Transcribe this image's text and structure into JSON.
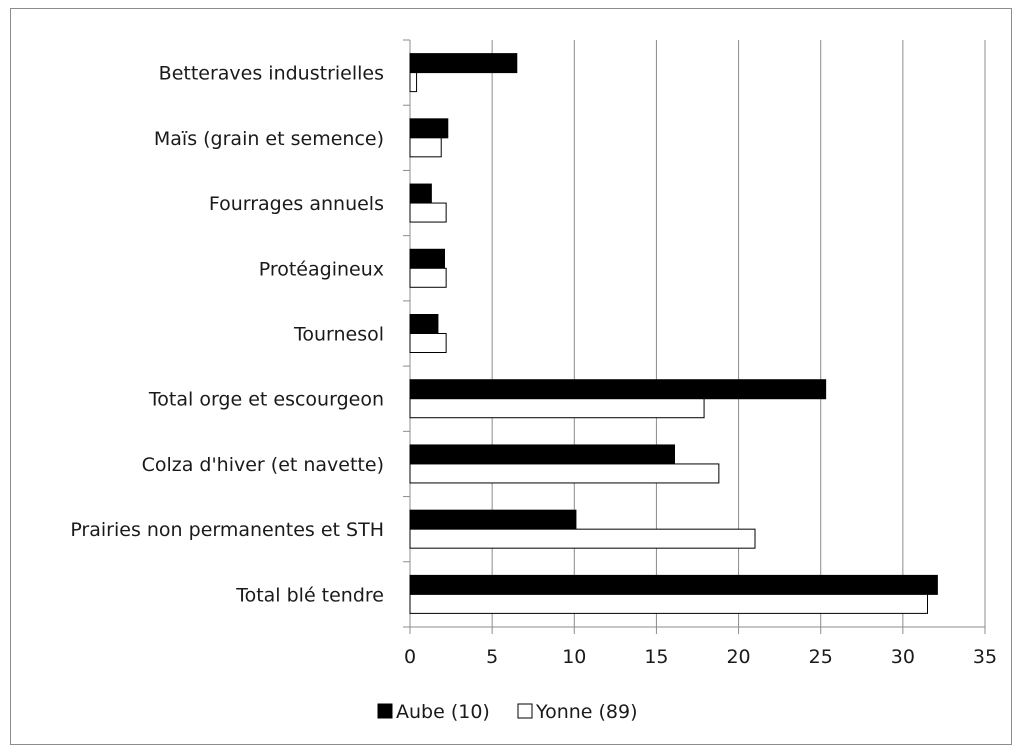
{
  "chart_data": {
    "type": "bar",
    "orientation": "horizontal",
    "categories": [
      "Betteraves industrielles",
      "Maïs (grain et semence)",
      "Fourrages annuels",
      "Protéagineux",
      "Tournesol",
      "Total orge et escourgeon",
      "Colza d'hiver (et navette)",
      "Prairies non permanentes et STH",
      "Total blé tendre"
    ],
    "series": [
      {
        "name": "Aube (10)",
        "color": "#000000",
        "values": [
          6.5,
          2.3,
          1.3,
          2.1,
          1.7,
          25.3,
          16.1,
          10.1,
          32.1
        ]
      },
      {
        "name": "Yonne (89)",
        "color": "#ffffff",
        "values": [
          0.4,
          1.9,
          2.2,
          2.2,
          2.2,
          17.9,
          18.8,
          21.0,
          31.5
        ]
      }
    ],
    "xlim": [
      0,
      35
    ],
    "xticks": [
      "0",
      "5",
      "10",
      "15",
      "20",
      "25",
      "30",
      "35"
    ],
    "grid": "vertical",
    "legend": "bottom",
    "title": "",
    "xlabel": "",
    "ylabel": ""
  }
}
